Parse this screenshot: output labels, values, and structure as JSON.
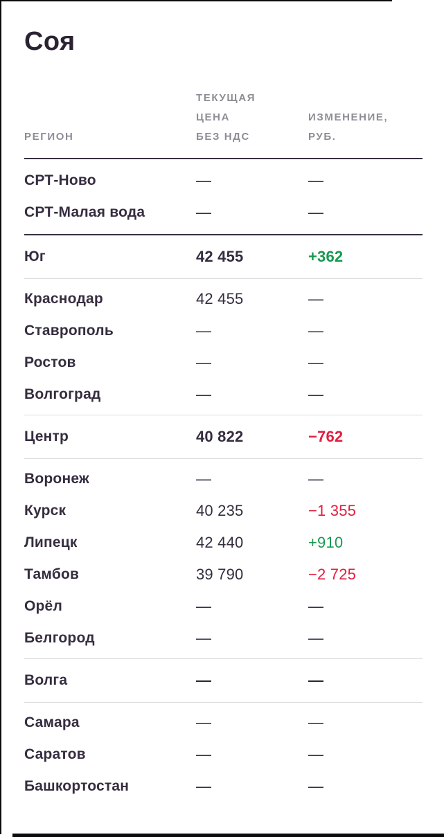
{
  "title": "Соя",
  "columns": {
    "region": "РЕГИОН",
    "price_lines": [
      "ТЕКУЩАЯ",
      "ЦЕНА",
      "БЕЗ НДС"
    ],
    "change_lines": [
      "ИЗМЕНЕНИЕ,",
      "РУБ."
    ]
  },
  "rows": [
    {
      "region": "СРТ-Ново",
      "price": "—",
      "change": "—",
      "trend": ""
    },
    {
      "region": "СРТ-Малая вода",
      "price": "—",
      "change": "—",
      "trend": ""
    },
    {
      "region": "Юг",
      "price": "42 455",
      "change": "+362",
      "trend": "pos"
    },
    {
      "region": "Краснодар",
      "price": "42 455",
      "change": "—",
      "trend": ""
    },
    {
      "region": "Ставрополь",
      "price": "—",
      "change": "—",
      "trend": ""
    },
    {
      "region": "Ростов",
      "price": "—",
      "change": "—",
      "trend": ""
    },
    {
      "region": "Волгоград",
      "price": "—",
      "change": "—",
      "trend": ""
    },
    {
      "region": "Центр",
      "price": "40 822",
      "change": "−762",
      "trend": "neg"
    },
    {
      "region": "Воронеж",
      "price": "—",
      "change": "—",
      "trend": ""
    },
    {
      "region": "Курск",
      "price": "40 235",
      "change": "−1 355",
      "trend": "neg"
    },
    {
      "region": "Липецк",
      "price": "42 440",
      "change": "+910",
      "trend": "pos"
    },
    {
      "region": "Тамбов",
      "price": "39 790",
      "change": "−2 725",
      "trend": "neg"
    },
    {
      "region": "Орёл",
      "price": "—",
      "change": "—",
      "trend": ""
    },
    {
      "region": "Белгород",
      "price": "—",
      "change": "—",
      "trend": ""
    },
    {
      "region": "Волга",
      "price": "—",
      "change": "—",
      "trend": ""
    },
    {
      "region": "Самара",
      "price": "—",
      "change": "—",
      "trend": ""
    },
    {
      "region": "Саратов",
      "price": "—",
      "change": "—",
      "trend": ""
    },
    {
      "region": "Башкортостан",
      "price": "—",
      "change": "—",
      "trend": ""
    }
  ],
  "colors": {
    "title_color": "#2b2234",
    "text_dark": "#362d40",
    "header_gray": "#8f8c96",
    "green": "#17994f",
    "red": "#e11e3f",
    "rule_dark": "#37303f",
    "rule_light": "#dadadd",
    "border_dark": "#0b0b0e"
  }
}
